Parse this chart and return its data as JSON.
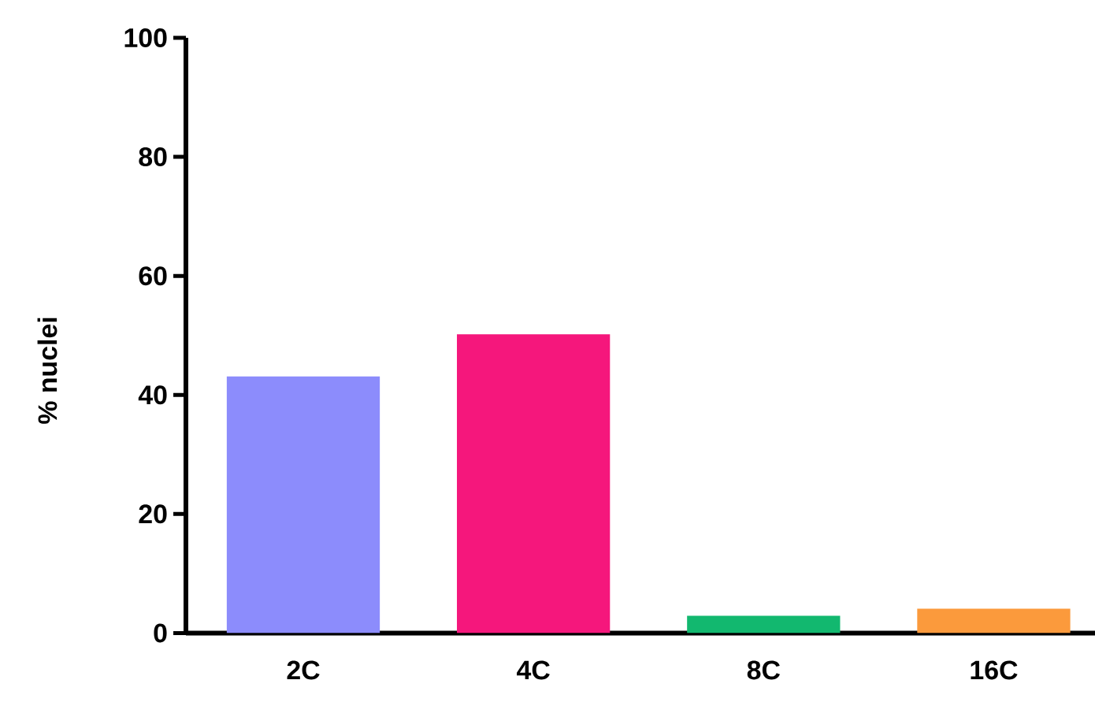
{
  "chart_data": {
    "type": "bar",
    "ylabel": "% nuclei",
    "categories": [
      "2C",
      "4C",
      "8C",
      "16C"
    ],
    "values": [
      43.1,
      50.2,
      2.9,
      4.1
    ],
    "colors": [
      "#8c8cfc",
      "#f5177c",
      "#12b86f",
      "#fb9a3c"
    ],
    "ylim": [
      0,
      100
    ],
    "yticks": [
      0,
      20,
      40,
      60,
      80,
      100
    ],
    "grid": false
  }
}
